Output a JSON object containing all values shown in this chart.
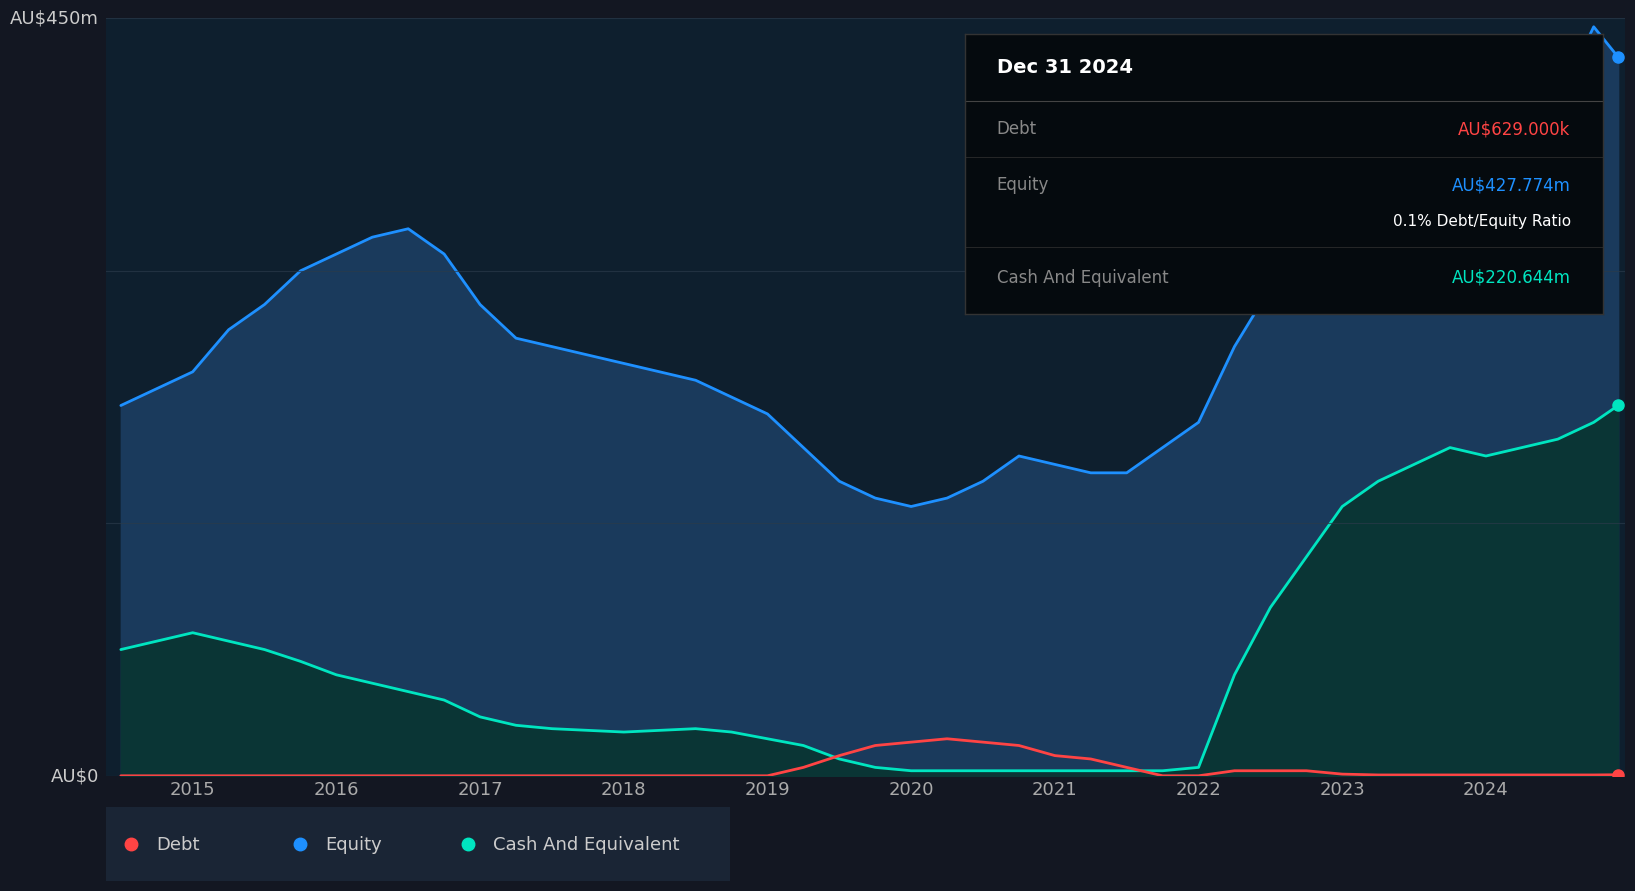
{
  "bg_outer": "#131722",
  "bg_plot": "#0e1f2e",
  "ylabel_450": "AU$450m",
  "ylabel_0": "AU$0",
  "equity_color": "#1e90ff",
  "equity_fill": "#1a3a5c",
  "cash_color": "#00e5c0",
  "cash_fill": "#0a3535",
  "debt_color": "#ff4444",
  "grid_color": "#2a3a4a",
  "legend_bg": "#1a2535",
  "tooltip_bg": "#050a0e",
  "tooltip_border": "#333333",
  "years_x": [
    2014.5,
    2015.0,
    2015.25,
    2015.5,
    2015.75,
    2016.0,
    2016.25,
    2016.5,
    2016.75,
    2017.0,
    2017.25,
    2017.5,
    2017.75,
    2018.0,
    2018.25,
    2018.5,
    2018.75,
    2019.0,
    2019.25,
    2019.5,
    2019.75,
    2020.0,
    2020.25,
    2020.5,
    2020.75,
    2021.0,
    2021.25,
    2021.5,
    2021.75,
    2022.0,
    2022.25,
    2022.5,
    2022.75,
    2023.0,
    2023.25,
    2023.5,
    2023.75,
    2024.0,
    2024.25,
    2024.5,
    2024.75,
    2024.92
  ],
  "equity": [
    220,
    240,
    265,
    280,
    300,
    310,
    320,
    325,
    310,
    280,
    260,
    255,
    250,
    245,
    240,
    235,
    225,
    215,
    195,
    175,
    165,
    160,
    165,
    175,
    190,
    185,
    180,
    180,
    195,
    210,
    255,
    290,
    305,
    310,
    320,
    335,
    360,
    360,
    370,
    400,
    445,
    427
  ],
  "cash": [
    75,
    85,
    80,
    75,
    68,
    60,
    55,
    50,
    45,
    35,
    30,
    28,
    27,
    26,
    27,
    28,
    26,
    22,
    18,
    10,
    5,
    3,
    3,
    3,
    3,
    3,
    3,
    3,
    3,
    5,
    60,
    100,
    130,
    160,
    175,
    185,
    195,
    190,
    195,
    200,
    210,
    220
  ],
  "debt": [
    0,
    0,
    0,
    0,
    0,
    0,
    0,
    0,
    0,
    0,
    0,
    0,
    0,
    0,
    0,
    0,
    0,
    0,
    5,
    12,
    18,
    20,
    22,
    20,
    18,
    12,
    10,
    5,
    0,
    0,
    3,
    3,
    3,
    1,
    0.5,
    0.5,
    0.5,
    0.5,
    0.5,
    0.5,
    0.5,
    0.629
  ],
  "xticks": [
    2015,
    2016,
    2017,
    2018,
    2019,
    2020,
    2021,
    2022,
    2023,
    2024
  ],
  "ylim": [
    0,
    450
  ],
  "tooltip_date": "Dec 31 2024",
  "tooltip_debt_label": "Debt",
  "tooltip_debt_val": "AU$629.000k",
  "tooltip_equity_label": "Equity",
  "tooltip_equity_val": "AU$427.774m",
  "tooltip_ratio": "0.1% Debt/Equity Ratio",
  "tooltip_cash_label": "Cash And Equivalent",
  "tooltip_cash_val": "AU$220.644m",
  "legend_items": [
    {
      "label": "Debt",
      "color": "#ff4444"
    },
    {
      "label": "Equity",
      "color": "#1e90ff"
    },
    {
      "label": "Cash And Equivalent",
      "color": "#00e5c0"
    }
  ]
}
